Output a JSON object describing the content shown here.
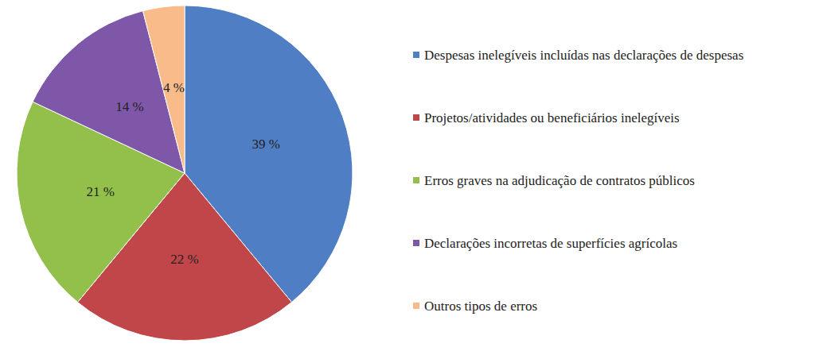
{
  "chart_data": {
    "type": "pie",
    "categories": [
      "Despesas inelegíveis incluídas nas declarações de despesas",
      "Projetos/atividades ou beneficiários inelegíveis",
      "Erros graves na adjudicação de contratos públicos",
      "Declarações incorretas de superfícies agrícolas",
      "Outros tipos de erros"
    ],
    "values": [
      39,
      22,
      21,
      14,
      4
    ],
    "value_labels": [
      "39 %",
      "22 %",
      "21 %",
      "14 %",
      "4 %"
    ],
    "colors": [
      "#4f7ec4",
      "#c0464a",
      "#92c04a",
      "#7f57a8",
      "#f9bb8a"
    ],
    "data_labels": true,
    "legend": "right"
  }
}
